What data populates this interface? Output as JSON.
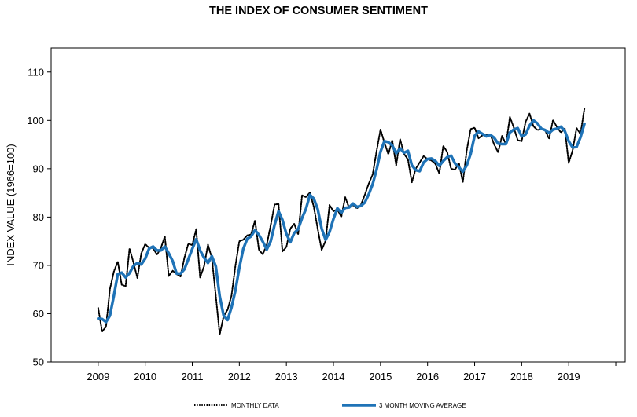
{
  "chart_data": {
    "type": "line",
    "title": "THE INDEX OF CONSUMER SENTIMENT",
    "ylabel": "INDEX VALUE (1966=100)",
    "xlabel": "",
    "ylim": [
      50,
      115
    ],
    "xlim": [
      2008.0,
      2020.2
    ],
    "yticks": [
      50,
      60,
      70,
      80,
      90,
      100,
      110
    ],
    "xticks": [
      2009,
      2010,
      2011,
      2012,
      2013,
      2014,
      2015,
      2016,
      2017,
      2018,
      2019
    ],
    "xtick_labels": [
      "2009",
      "2010",
      "2011",
      "2012",
      "2013",
      "2014",
      "2015",
      "2016",
      "2017",
      "2018",
      "2019"
    ],
    "grid": false,
    "legend_position": "bottom",
    "colors": {
      "monthly": "#000000",
      "moving_average": "#1f73b7"
    },
    "series": [
      {
        "name": "MONTHLY DATA",
        "style": "dotted",
        "start": 2009.0,
        "step": 0.08333,
        "values": [
          61.2,
          56.3,
          57.3,
          65.1,
          68.7,
          70.8,
          66.0,
          65.7,
          73.5,
          70.6,
          67.4,
          72.5,
          74.4,
          73.6,
          73.6,
          72.2,
          73.6,
          76.0,
          67.8,
          68.9,
          68.2,
          67.7,
          71.6,
          74.5,
          74.2,
          77.5,
          67.5,
          69.8,
          74.3,
          71.5,
          63.7,
          55.7,
          59.5,
          60.8,
          63.7,
          69.9,
          75.0,
          75.3,
          76.2,
          76.4,
          79.3,
          73.2,
          72.3,
          74.3,
          78.3,
          82.6,
          82.7,
          72.9,
          73.8,
          77.6,
          78.6,
          76.4,
          84.5,
          84.1,
          85.1,
          82.1,
          77.5,
          73.2,
          75.1,
          82.5,
          81.2,
          81.6,
          80.0,
          84.1,
          81.9,
          82.5,
          81.8,
          82.5,
          84.6,
          86.9,
          88.8,
          93.6,
          98.1,
          95.4,
          93.0,
          95.9,
          90.7,
          96.1,
          93.1,
          91.9,
          87.2,
          90.0,
          91.3,
          92.6,
          92.0,
          91.7,
          91.0,
          89.0,
          94.7,
          93.5,
          90.0,
          89.8,
          91.2,
          87.2,
          93.8,
          98.2,
          98.5,
          96.3,
          96.9,
          97.0,
          97.1,
          95.0,
          93.4,
          96.8,
          95.1,
          100.7,
          98.5,
          95.9,
          95.7,
          99.7,
          101.4,
          98.8,
          98.0,
          98.2,
          97.9,
          96.2,
          100.1,
          98.6,
          97.5,
          98.3,
          91.2,
          93.8,
          98.4,
          97.2,
          102.4
        ]
      },
      {
        "name": "3 MONTH MOVING AVERAGE",
        "style": "solid",
        "start": 2009.0,
        "step": 0.08333,
        "values": [
          59.0,
          58.9,
          58.3,
          59.6,
          63.7,
          68.2,
          68.5,
          67.5,
          68.4,
          69.9,
          70.5,
          70.2,
          71.4,
          73.5,
          73.9,
          73.1,
          73.1,
          73.9,
          72.5,
          70.9,
          68.3,
          68.3,
          69.2,
          71.3,
          73.4,
          75.4,
          73.1,
          71.6,
          70.5,
          71.9,
          69.8,
          63.6,
          59.6,
          58.7,
          61.3,
          64.8,
          69.5,
          73.4,
          75.5,
          76.0,
          77.3,
          76.3,
          74.9,
          73.3,
          75.0,
          78.4,
          81.2,
          79.4,
          76.5,
          74.8,
          76.7,
          77.5,
          79.8,
          81.7,
          84.6,
          83.8,
          81.6,
          77.6,
          75.3,
          76.9,
          79.6,
          81.8,
          80.9,
          81.9,
          82.0,
          82.8,
          82.1,
          82.3,
          83.0,
          84.7,
          86.8,
          89.8,
          93.5,
          95.7,
          95.5,
          94.8,
          93.2,
          94.2,
          93.3,
          93.7,
          90.7,
          89.7,
          89.5,
          91.3,
          92.0,
          92.1,
          91.6,
          90.6,
          91.6,
          92.4,
          92.7,
          91.1,
          90.3,
          89.4,
          90.7,
          93.1,
          96.8,
          97.7,
          97.2,
          96.7,
          97.0,
          96.4,
          95.2,
          95.1,
          95.1,
          97.5,
          98.1,
          98.4,
          96.7,
          97.1,
          98.9,
          100.0,
          99.4,
          98.3,
          98.0,
          97.4,
          98.1,
          98.3,
          98.7,
          97.8,
          95.7,
          94.4,
          94.5,
          96.5,
          99.3
        ]
      }
    ]
  }
}
